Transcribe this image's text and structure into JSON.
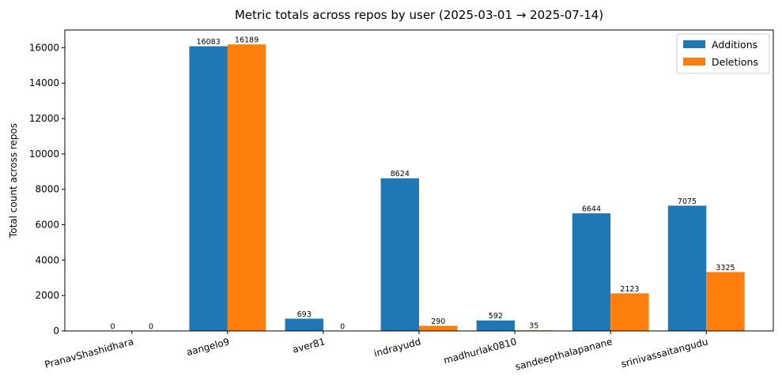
{
  "chart_data": {
    "type": "bar",
    "title": "Metric totals across repos by user (2025-03-01 → 2025-07-14)",
    "xlabel": "",
    "ylabel": "Total count across repos",
    "categories": [
      "PranavShashidhara",
      "aangelo9",
      "aver81",
      "indrayudd",
      "madhurlak0810",
      "sandeepthalapanane",
      "srinivassaitangudu"
    ],
    "series": [
      {
        "name": "Additions",
        "color": "#1f77b4",
        "values": [
          0,
          16083,
          693,
          8624,
          592,
          6644,
          7075
        ]
      },
      {
        "name": "Deletions",
        "color": "#ff7f0e",
        "values": [
          0,
          16189,
          0,
          290,
          35,
          2123,
          3325
        ]
      }
    ],
    "ylim": [
      0,
      17000
    ],
    "yticks": [
      0,
      2000,
      4000,
      6000,
      8000,
      10000,
      12000,
      14000,
      16000
    ],
    "grid": false,
    "legend_position": "top-right"
  }
}
